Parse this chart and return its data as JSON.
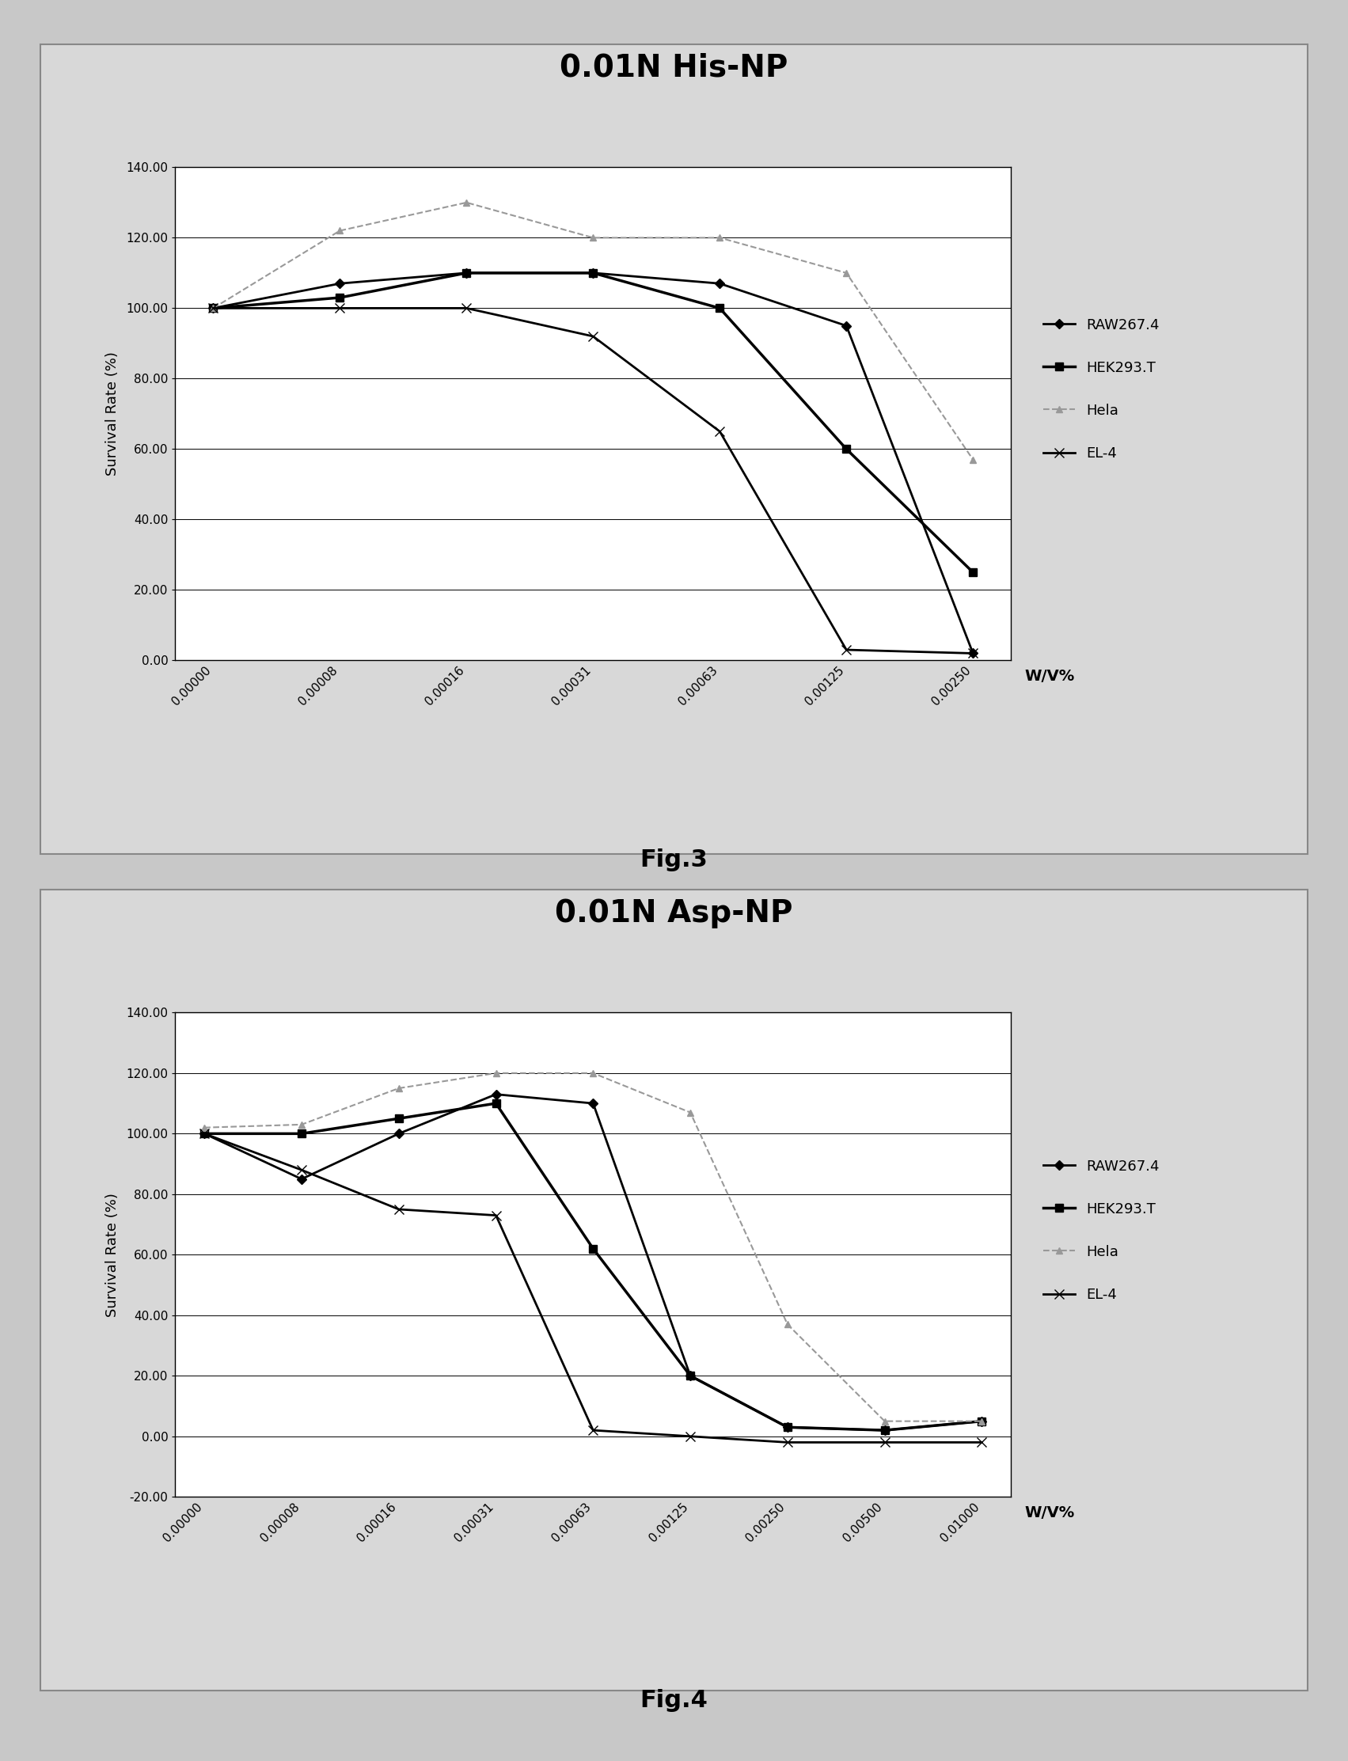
{
  "fig3": {
    "title": "0.01N His-NP",
    "xlabel": "W/V%",
    "ylabel": "Survival Rate (%)",
    "ylim": [
      0.0,
      140.0
    ],
    "yticks": [
      0.0,
      20.0,
      40.0,
      60.0,
      80.0,
      100.0,
      120.0,
      140.0
    ],
    "ytick_labels": [
      "0.00",
      "20.00",
      "40.00",
      "60.00",
      "80.00",
      "100.00",
      "120.00",
      "140.00"
    ],
    "xtick_labels": [
      "0.00000",
      "0.00008",
      "0.00016",
      "0.00031",
      "0.00063",
      "0.00125",
      "0.00250"
    ],
    "series": {
      "RAW267.4": {
        "x": [
          0,
          1,
          2,
          3,
          4,
          5,
          6
        ],
        "y": [
          100,
          107,
          110,
          110,
          107,
          95,
          2
        ],
        "color": "#000000",
        "marker": "D",
        "linewidth": 2.0,
        "markersize": 6,
        "linestyle": "-"
      },
      "HEK293.T": {
        "x": [
          0,
          1,
          2,
          3,
          4,
          5,
          6
        ],
        "y": [
          100,
          103,
          110,
          110,
          100,
          60,
          25
        ],
        "color": "#000000",
        "marker": "s",
        "linewidth": 2.5,
        "markersize": 7,
        "linestyle": "-"
      },
      "Hela": {
        "x": [
          0,
          1,
          2,
          3,
          4,
          5,
          6
        ],
        "y": [
          100,
          122,
          130,
          120,
          120,
          110,
          57
        ],
        "color": "#999999",
        "marker": "^",
        "linewidth": 1.5,
        "markersize": 6,
        "linestyle": "--"
      },
      "EL-4": {
        "x": [
          0,
          1,
          2,
          3,
          4,
          5,
          6
        ],
        "y": [
          100,
          100,
          100,
          92,
          65,
          3,
          2
        ],
        "color": "#000000",
        "marker": "x",
        "linewidth": 2.0,
        "markersize": 8,
        "linestyle": "-"
      }
    }
  },
  "fig4": {
    "title": "0.01N Asp-NP",
    "xlabel": "W/V%",
    "ylabel": "Survival Rate (%)",
    "ylim": [
      -20.0,
      140.0
    ],
    "yticks": [
      -20.0,
      0.0,
      20.0,
      40.0,
      60.0,
      80.0,
      100.0,
      120.0,
      140.0
    ],
    "ytick_labels": [
      "-20.00",
      "0.00",
      "20.00",
      "40.00",
      "60.00",
      "80.00",
      "100.00",
      "120.00",
      "140.00"
    ],
    "xtick_labels": [
      "0.00000",
      "0.00008",
      "0.00016",
      "0.00031",
      "0.00063",
      "0.00125",
      "0.00250",
      "0.00500",
      "0.01000"
    ],
    "series": {
      "RAW267.4": {
        "x": [
          0,
          1,
          2,
          3,
          4,
          5,
          6,
          7,
          8
        ],
        "y": [
          100,
          85,
          100,
          113,
          110,
          20,
          3,
          2,
          5
        ],
        "color": "#000000",
        "marker": "D",
        "linewidth": 2.0,
        "markersize": 6,
        "linestyle": "-"
      },
      "HEK293.T": {
        "x": [
          0,
          1,
          2,
          3,
          4,
          5,
          6,
          7,
          8
        ],
        "y": [
          100,
          100,
          105,
          110,
          62,
          20,
          3,
          2,
          5
        ],
        "color": "#000000",
        "marker": "s",
        "linewidth": 2.5,
        "markersize": 7,
        "linestyle": "-"
      },
      "Hela": {
        "x": [
          0,
          1,
          2,
          3,
          4,
          5,
          6,
          7,
          8
        ],
        "y": [
          102,
          103,
          115,
          120,
          120,
          107,
          37,
          5,
          5
        ],
        "color": "#999999",
        "marker": "^",
        "linewidth": 1.5,
        "markersize": 6,
        "linestyle": "--"
      },
      "EL-4": {
        "x": [
          0,
          1,
          2,
          3,
          4,
          5,
          6,
          7,
          8
        ],
        "y": [
          100,
          88,
          75,
          73,
          2,
          0,
          -2,
          -2,
          -2
        ],
        "color": "#000000",
        "marker": "x",
        "linewidth": 2.0,
        "markersize": 8,
        "linestyle": "-"
      }
    }
  },
  "fig3_label": "Fig.3",
  "fig4_label": "Fig.4",
  "outer_bg_color": "#c8c8c8",
  "panel_bg_color": "#d8d8d8",
  "plot_bg_color": "#ffffff",
  "title_fontsize": 28,
  "axis_label_fontsize": 13,
  "tick_fontsize": 11,
  "legend_fontsize": 13,
  "fig_label_fontsize": 22,
  "wv_label_fontsize": 14
}
